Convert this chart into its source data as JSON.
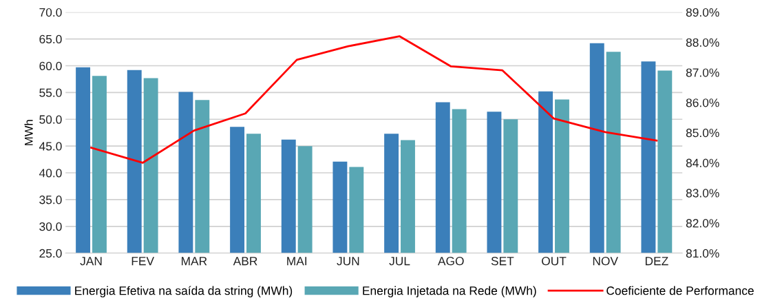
{
  "chart_data": {
    "type": "bar",
    "ylabel": "MWh",
    "categories": [
      "JAN",
      "FEV",
      "MAR",
      "ABR",
      "MAI",
      "JUN",
      "JUL",
      "AGO",
      "SET",
      "OUT",
      "NOV",
      "DEZ"
    ],
    "series": [
      {
        "name": "Energia Efetiva na saída da string (MWh)",
        "color": "#3b7fba",
        "values": [
          59.7,
          59.2,
          55.1,
          48.6,
          46.2,
          42.1,
          47.3,
          53.2,
          51.4,
          55.2,
          64.2,
          60.8
        ]
      },
      {
        "name": "Energia Injetada na Rede (MWh)",
        "color": "#59a7b4",
        "values": [
          58.1,
          57.7,
          53.6,
          47.3,
          45.0,
          41.1,
          46.1,
          51.9,
          50.0,
          53.7,
          62.6,
          59.1
        ]
      },
      {
        "name": "Coeficiente de Performance",
        "type": "line",
        "axis": "y2",
        "color": "#ff0000",
        "values": [
          84.5,
          84.0,
          85.07,
          85.64,
          87.42,
          87.87,
          88.2,
          87.2,
          87.07,
          85.47,
          85.02,
          84.74
        ]
      }
    ],
    "ylim": [
      25,
      70
    ],
    "yticks": [
      {
        "value": 25,
        "label": "25.0"
      },
      {
        "value": 30,
        "label": "30.0"
      },
      {
        "value": 35,
        "label": "35.0"
      },
      {
        "value": 40,
        "label": "40.0"
      },
      {
        "value": 45,
        "label": "45.0"
      },
      {
        "value": 50,
        "label": "50.0"
      },
      {
        "value": 55,
        "label": "55.0"
      },
      {
        "value": 60,
        "label": "60.0"
      },
      {
        "value": 65,
        "label": "65.0"
      },
      {
        "value": 70,
        "label": "70.0"
      }
    ],
    "y2lim": [
      81,
      89
    ],
    "y2ticks": [
      {
        "value": 81,
        "label": "81.0%"
      },
      {
        "value": 82,
        "label": "82.0%"
      },
      {
        "value": 83,
        "label": "83.0%"
      },
      {
        "value": 84,
        "label": "84.0%"
      },
      {
        "value": 85,
        "label": "85.0%"
      },
      {
        "value": 86,
        "label": "86.0%"
      },
      {
        "value": 87,
        "label": "87.0%"
      },
      {
        "value": 88,
        "label": "88.0%"
      },
      {
        "value": 89,
        "label": "89.0%"
      }
    ],
    "grid": "y",
    "legend": "bottom"
  }
}
